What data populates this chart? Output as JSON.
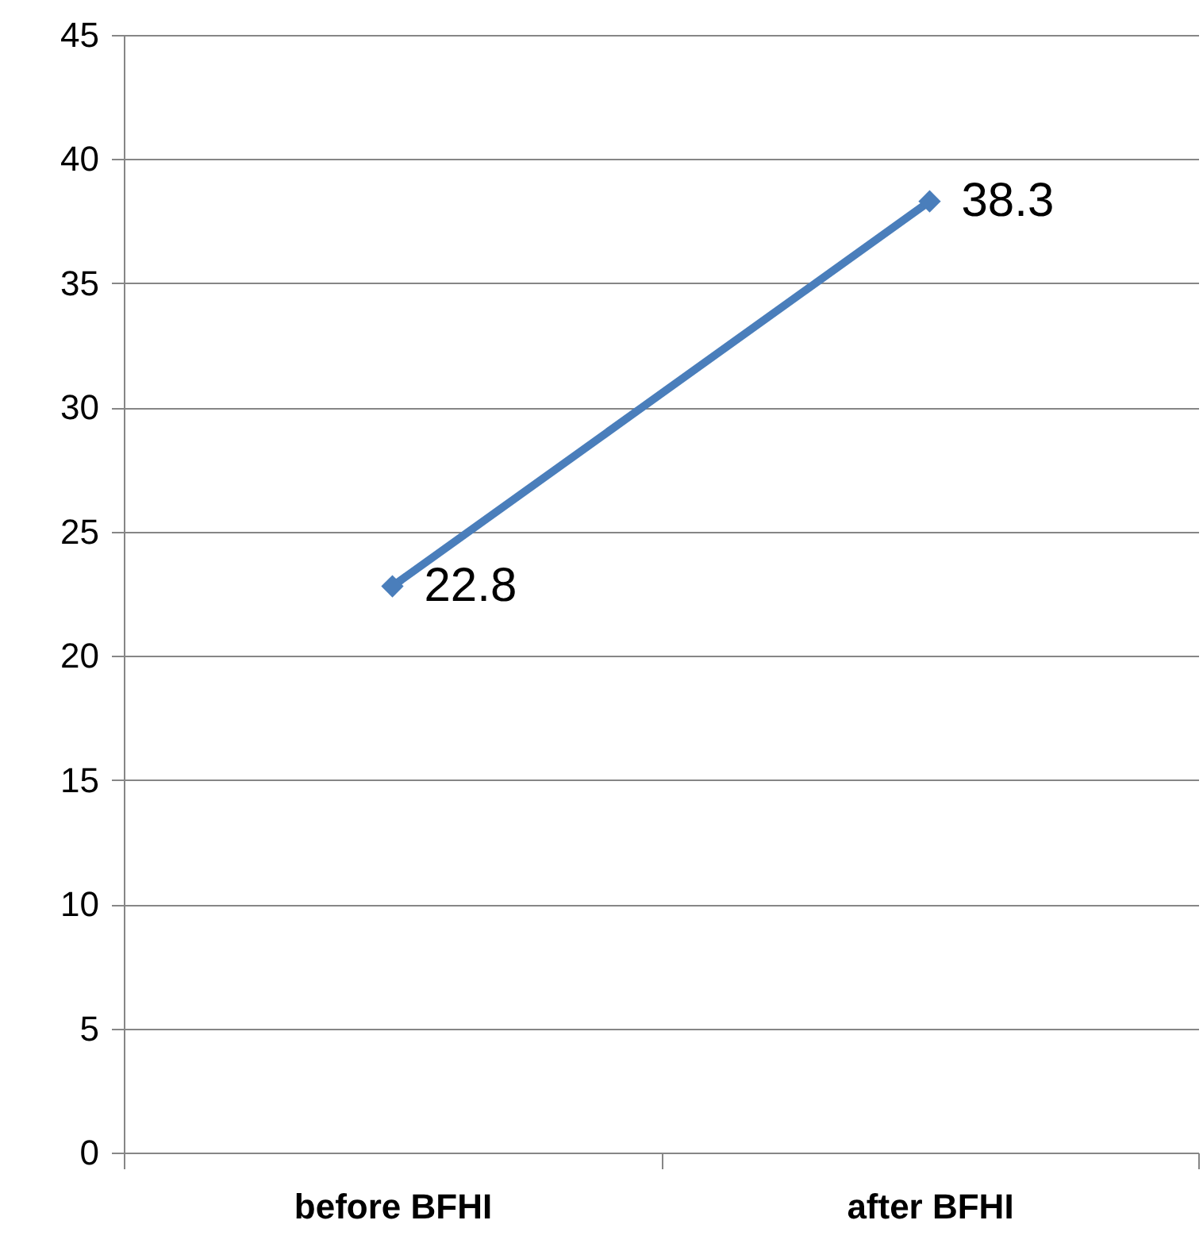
{
  "chart_data": {
    "type": "line",
    "categories": [
      "before BFHI",
      "after BFHI"
    ],
    "series": [
      {
        "color": "#4a7ebb",
        "values": [
          22.8,
          38.3
        ]
      }
    ],
    "ylim": [
      0,
      45
    ],
    "yticks": [
      0,
      5,
      10,
      15,
      20,
      25,
      30,
      35,
      40,
      45
    ],
    "grid": "y",
    "marker": "diamond",
    "data_labels": true
  }
}
